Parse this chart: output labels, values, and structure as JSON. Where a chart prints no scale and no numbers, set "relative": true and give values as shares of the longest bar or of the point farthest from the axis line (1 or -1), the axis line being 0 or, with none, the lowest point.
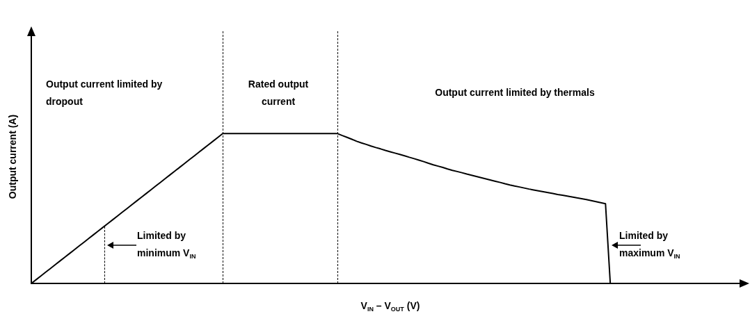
{
  "chart_data": {
    "type": "line",
    "relative": true,
    "xlabel": "V$_{IN}$ – V$_{OUT}$ (V)",
    "ylabel": "Output current (A)",
    "grid": false,
    "legend": false,
    "marker": "none",
    "line_style": "solid",
    "categories": [
      null,
      null,
      null,
      null,
      null,
      null,
      null,
      null,
      null,
      null,
      null,
      null,
      null,
      null,
      null,
      null,
      null,
      null,
      null,
      null,
      null,
      null,
      null,
      null,
      null,
      null,
      null,
      null,
      null,
      null,
      null,
      null,
      null,
      null,
      null,
      null,
      null,
      null,
      null,
      null,
      null,
      null,
      null,
      null,
      null,
      null,
      null,
      null,
      null,
      null,
      null,
      null,
      null,
      null,
      null,
      null,
      null,
      null,
      null,
      null,
      null,
      null,
      null,
      null,
      null,
      null,
      null,
      null,
      null,
      null,
      null,
      null,
      null,
      null,
      null,
      null,
      null,
      null,
      null,
      null,
      null,
      null,
      null,
      null,
      null,
      null,
      null,
      null,
      null,
      null,
      null,
      null,
      null,
      null,
      null,
      null,
      null,
      null,
      null,
      null,
      null,
      null,
      null,
      null,
      null,
      null,
      null,
      null,
      null,
      null,
      null,
      null,
      null,
      null,
      null,
      null,
      null,
      null,
      null,
      null,
      null,
      null,
      null,
      null,
      null,
      null,
      null,
      null,
      null,
      null,
      null,
      null,
      null,
      null,
      null,
      null,
      null,
      null,
      null,
      null,
      null,
      null,
      null,
      null,
      null,
      null,
      null,
      null
    ],
    "series": [
      {
        "color": "#000000",
        "values": [
          0,
          0.025,
          0.05,
          0.075,
          0.1,
          0.125,
          0.15,
          0.175,
          0.2,
          0.225,
          0.25,
          0.275,
          0.3,
          0.325,
          0.35,
          0.375,
          0.4,
          0.425,
          0.45,
          0.475,
          0.5,
          0.525,
          0.55,
          0.575,
          0.6,
          0.625,
          0.65,
          0.675,
          0.7,
          0.725,
          0.75,
          0.775,
          0.8,
          0.825,
          0.85,
          0.875,
          0.9,
          0.925,
          0.95,
          0.975,
          1,
          1,
          1,
          1,
          1,
          1,
          1,
          1,
          1,
          1,
          1,
          1,
          1,
          1,
          1,
          1,
          1,
          1,
          1,
          1,
          1,
          1,
          1,
          1,
          1,
          0.987,
          0.975,
          0.962,
          0.949,
          0.938,
          0.928,
          0.917,
          0.907,
          0.898,
          0.888,
          0.879,
          0.87,
          0.861,
          0.852,
          0.842,
          0.833,
          0.823,
          0.813,
          0.802,
          0.792,
          0.783,
          0.774,
          0.764,
          0.755,
          0.747,
          0.739,
          0.73,
          0.722,
          0.714,
          0.706,
          0.698,
          0.69,
          0.682,
          0.674,
          0.665,
          0.657,
          0.65,
          0.644,
          0.637,
          0.63,
          0.624,
          0.618,
          0.612,
          0.606,
          0.6,
          0.594,
          0.589,
          0.583,
          0.577,
          0.571,
          0.566,
          0.56,
          0.553,
          0.546,
          0.539,
          0.532,
          0,
          null,
          null,
          null,
          null,
          null,
          null,
          null,
          null,
          null,
          null,
          null,
          null,
          null,
          null,
          null,
          null,
          null,
          null,
          null,
          null,
          null,
          null,
          null,
          null,
          null,
          null
        ]
      }
    ],
    "annotations": [
      "Output current limited by dropout",
      "Rated output current",
      "Output current limited by thermals",
      "Limited by minimum V$_{IN}$",
      "Limited by maximum V$_{IN}$"
    ]
  }
}
